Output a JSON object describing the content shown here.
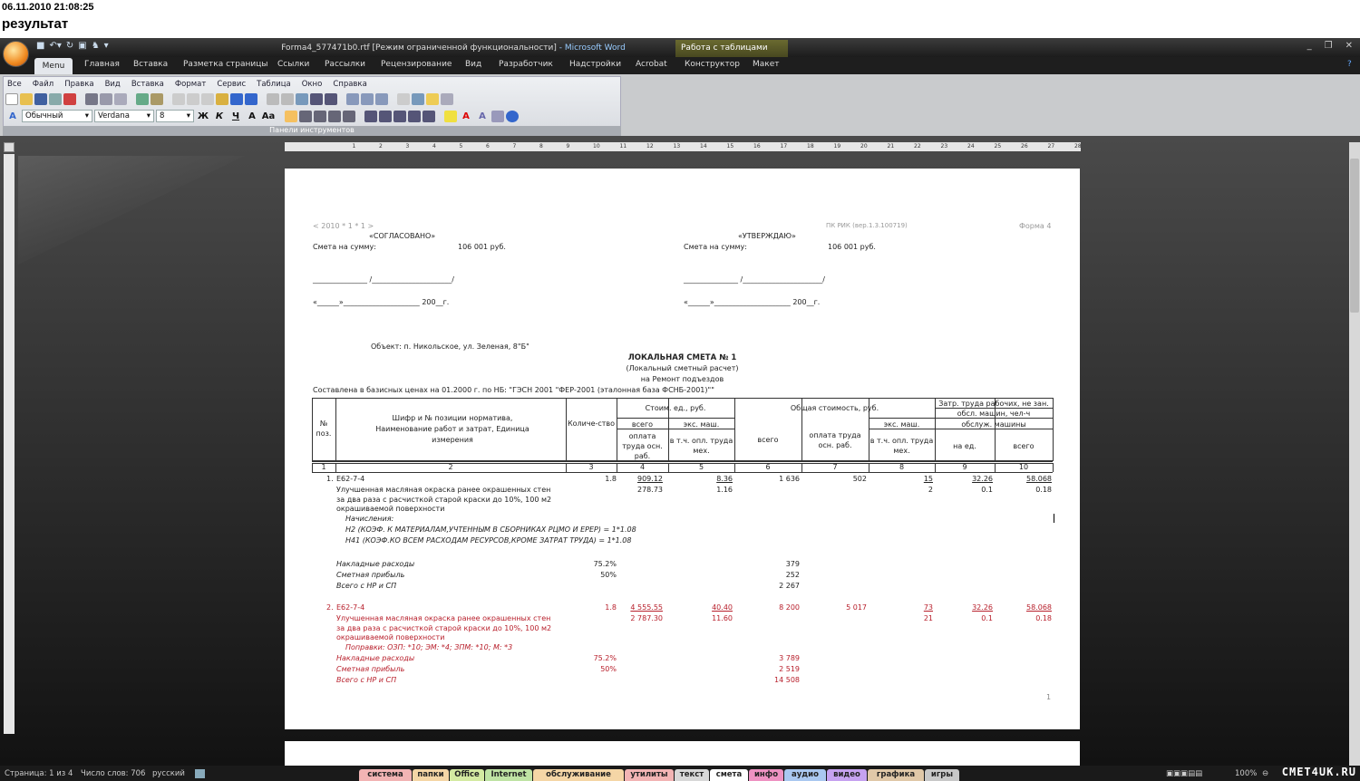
{
  "caption": {
    "date": "06.11.2010 21:08:25",
    "title": "результат"
  },
  "window": {
    "doc_title": "Forma4_577471b0.rtf [Режим ограниченной функциональности]",
    "app": " - Microsoft Word",
    "context_tab": "Работа с таблицами"
  },
  "ribbon_tabs": [
    "Menu",
    "Главная",
    "Вставка",
    "Разметка страницы",
    "Ссылки",
    "Рассылки",
    "Рецензирование",
    "Вид",
    "Разработчик",
    "Надстройки",
    "Acrobat",
    "Конструктор",
    "Макет"
  ],
  "menu_items": [
    "Все",
    "Файл",
    "Правка",
    "Вид",
    "Вставка",
    "Формат",
    "Сервис",
    "Таблица",
    "Окно",
    "Справка"
  ],
  "toolbar": {
    "style": "Обычный",
    "font": "Verdana",
    "size": "8",
    "bold": "Ж",
    "italic": "К",
    "underline": "Ч",
    "panel_label": "Панели инструментов"
  },
  "doc": {
    "code": "< 2010 * 1 * 1 >",
    "program": "ПК РИК (вер.1.3.100719)",
    "form": "Форма 4",
    "agreed": "«СОГЛАСОВАНО»",
    "approved": "«УТВЕРЖДАЮ»",
    "sum_label": "Смета на сумму:",
    "sum_value": "106 001 руб.",
    "sign_line": "_______________ /______________________/",
    "date_line": "«______»_____________________ 200__г.",
    "object": "Объект: п. Никольское, ул. Зеленая, 8\"Б\"",
    "title": "ЛОКАЛЬНАЯ СМЕТА № 1",
    "subtitle": "(Локальный сметный расчет)",
    "purpose": "на Ремонт подъездов",
    "basis": "Составлена в базисных ценах на 01.2000 г. по НБ: \"ГЭСН 2001 \"ФЕР-2001 (эталонная база ФСНБ-2001)\"\"",
    "page_number": "1"
  },
  "table": {
    "h_pos": "№ поз.",
    "h_name": "Шифр и № позиции норматива, Наименование работ и затрат, Единица измерения",
    "h_qty": "Количе-ство",
    "h_unit_cost": "Стоим. ед., руб.",
    "h_total_cost": "Общая стоимость, руб.",
    "h_labor": "Затр. труда рабочих, не зан. обсл. машин, чел-ч",
    "h_all": "всего",
    "h_mach": "экс. маш.",
    "h_pay": "оплата труда осн. раб.",
    "h_mech": "в т.ч. опл. труда мех.",
    "h_all2": "всего",
    "h_pay2": "оплата труда осн. раб.",
    "h_mach2": "экс. маш.",
    "h_mech2": "в т.ч. опл. труда мех.",
    "h_serv": "обслуж. машины",
    "h_per": "на ед.",
    "h_tot": "всего",
    "col_numbers": [
      "1",
      "2",
      "3",
      "4",
      "5",
      "6",
      "7",
      "8",
      "9",
      "10"
    ],
    "rows": [
      {
        "num": "1.",
        "code": "Е62-7-4",
        "qty": "1.8",
        "c4": "909.12",
        "c5": "8.36",
        "c6": "1 636",
        "c7": "502",
        "c8": "15",
        "c9": "32.26",
        "c10": "58.068",
        "c4b": "278.73",
        "c5b": "1.16",
        "c8b": "2",
        "c9b": "0.1",
        "c10b": "0.18",
        "desc": [
          "Улучшенная масляная окраска ранее окрашенных стен",
          "за два раза с расчисткой старой краски до 10%, 100 м2",
          "окрашиваемой поверхности"
        ],
        "notes": [
          "Начисления:",
          "Н2 (КОЭФ. К МАТЕРИАЛАМ,УЧТЕННЫМ В СБОРНИКАХ РЦМО И ЕРЕР) = 1*1.08",
          "Н41 (КОЭФ.КО ВСЕМ РАСХОДАМ РЕСУРСОВ,КРОМЕ ЗАТРАТ ТРУДА) = 1*1.08"
        ],
        "overhead": {
          "label": "Накладные расходы",
          "pct": "75.2%",
          "value": "379"
        },
        "profit": {
          "label": "Сметная прибыль",
          "pct": "50%",
          "value": "252"
        },
        "total": {
          "label": "Всего с НР и СП",
          "value": "2 267"
        }
      },
      {
        "num": "2.",
        "code": "Е62-7-4",
        "qty": "1.8",
        "c4": "4 555.55",
        "c5": "40.40",
        "c6": "8 200",
        "c7": "5 017",
        "c8": "73",
        "c9": "32.26",
        "c10": "58.068",
        "c4b": "2 787.30",
        "c5b": "11.60",
        "c8b": "21",
        "c9b": "0.1",
        "c10b": "0.18",
        "desc": [
          "Улучшенная масляная окраска ранее окрашенных стен",
          "за два раза с расчисткой старой краски до 10%, 100 м2",
          "окрашиваемой поверхности"
        ],
        "notes": [
          "Поправки: ОЗП: *10;   ЭМ: *4;   ЗПМ: *10;   М: *3"
        ],
        "overhead": {
          "label": "Накладные расходы",
          "pct": "75.2%",
          "value": "3 789"
        },
        "profit": {
          "label": "Сметная прибыль",
          "pct": "50%",
          "value": "2 519"
        },
        "total": {
          "label": "Всего с НР и СП",
          "value": "14 508"
        }
      }
    ]
  },
  "status": {
    "page": "Страница: 1 из 4",
    "words": "Число слов: 706",
    "lang": "русский",
    "zoom": "100%"
  },
  "launcher_tabs": [
    {
      "label": "система",
      "color": "#f2b4b4"
    },
    {
      "label": "папки",
      "color": "#f5d6a6"
    },
    {
      "label": "Office",
      "color": "#d4eaa2"
    },
    {
      "label": "Internet",
      "color": "#bfe3a4"
    },
    {
      "label": "обслуживание",
      "color": "#f5d6a6"
    },
    {
      "label": "утилиты",
      "color": "#f2b4b4"
    },
    {
      "label": "текст",
      "color": "#d8d8d8"
    },
    {
      "label": "смета",
      "color": "#ffffff"
    },
    {
      "label": "инфо",
      "color": "#ee92c2"
    },
    {
      "label": "аудио",
      "color": "#aac8f0"
    },
    {
      "label": "видео",
      "color": "#c6a2f0"
    },
    {
      "label": "графика",
      "color": "#e0c8a8"
    },
    {
      "label": "игры",
      "color": "#c8c8c8"
    }
  ],
  "watermark": "CMET4UK.RU",
  "colors": {
    "correction_red": "#b8202c",
    "accent": "#f08a20"
  }
}
